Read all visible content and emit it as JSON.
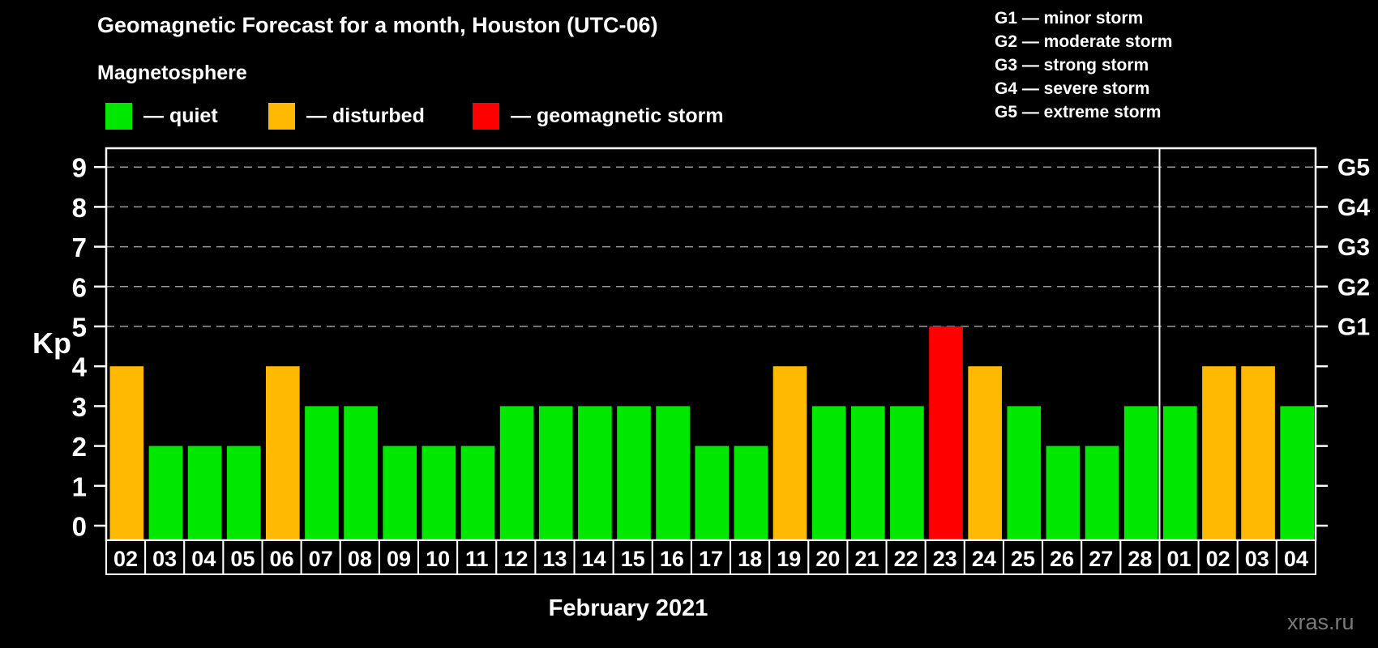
{
  "title": "Geomagnetic Forecast for a month, Houston (UTC-06)",
  "subtitle": "Magnetosphere",
  "legend": {
    "quiet": {
      "label": "— quiet",
      "color": "#00e800"
    },
    "disturbed": {
      "label": "— disturbed",
      "color": "#ffba00"
    },
    "storm": {
      "label": "— geomagnetic storm",
      "color": "#ff0000"
    }
  },
  "storm_scale_legend": [
    "G1 — minor storm",
    "G2 — moderate storm",
    "G3 — strong storm",
    "G4 — severe storm",
    "G5 — extreme storm"
  ],
  "watermark": "xras.ru",
  "chart_data": {
    "type": "bar",
    "title": "Geomagnetic Forecast for a month, Houston (UTC-06)",
    "xlabel": "February 2021",
    "ylabel": "Kp",
    "ylim": [
      0,
      9
    ],
    "grid": "dashed horizontal lines at Kp 5,6,7,8,9 only",
    "legend_position": "top-left",
    "axis_color": "#ffffff",
    "gridline_color": "#9a9a9a",
    "categories": [
      "02",
      "03",
      "04",
      "05",
      "06",
      "07",
      "08",
      "09",
      "10",
      "11",
      "12",
      "13",
      "14",
      "15",
      "16",
      "17",
      "18",
      "19",
      "20",
      "21",
      "22",
      "23",
      "24",
      "25",
      "26",
      "27",
      "28",
      "01",
      "02",
      "03",
      "04"
    ],
    "values": [
      4,
      2,
      2,
      2,
      4,
      3,
      3,
      2,
      2,
      2,
      3,
      3,
      3,
      3,
      3,
      2,
      2,
      4,
      3,
      3,
      3,
      5,
      4,
      3,
      2,
      2,
      3,
      3,
      4,
      4,
      3
    ],
    "statuses": [
      "disturbed",
      "quiet",
      "quiet",
      "quiet",
      "disturbed",
      "quiet",
      "quiet",
      "quiet",
      "quiet",
      "quiet",
      "quiet",
      "quiet",
      "quiet",
      "quiet",
      "quiet",
      "quiet",
      "quiet",
      "disturbed",
      "quiet",
      "quiet",
      "quiet",
      "storm",
      "disturbed",
      "quiet",
      "quiet",
      "quiet",
      "quiet",
      "quiet",
      "disturbed",
      "disturbed",
      "quiet"
    ],
    "month_divider_after_index": 26,
    "right_axis_labels": [
      {
        "kp": 5,
        "label": "G1"
      },
      {
        "kp": 6,
        "label": "G2"
      },
      {
        "kp": 7,
        "label": "G3"
      },
      {
        "kp": 8,
        "label": "G4"
      },
      {
        "kp": 9,
        "label": "G5"
      }
    ]
  }
}
